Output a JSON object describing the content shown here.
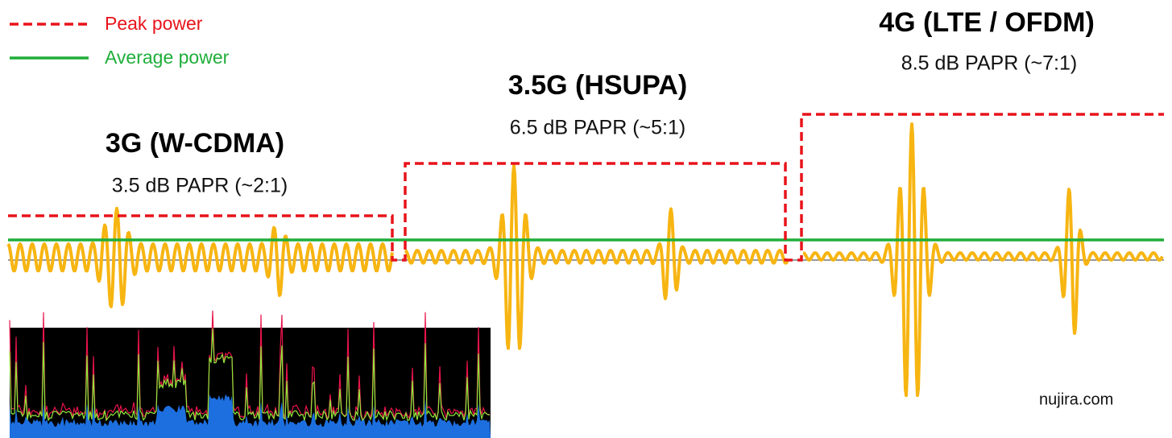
{
  "legend": {
    "peak": "Peak power",
    "average": "Average power"
  },
  "sections": [
    {
      "title": "3G (W-CDMA)",
      "papr": "3.5 dB PAPR (~2:1)"
    },
    {
      "title": "3.5G (HSUPA)",
      "papr": "6.5 dB PAPR (~5:1)"
    },
    {
      "title": "4G (LTE / OFDM)",
      "papr": "8.5 dB PAPR (~7:1)"
    }
  ],
  "watermark": "nujira.com"
}
